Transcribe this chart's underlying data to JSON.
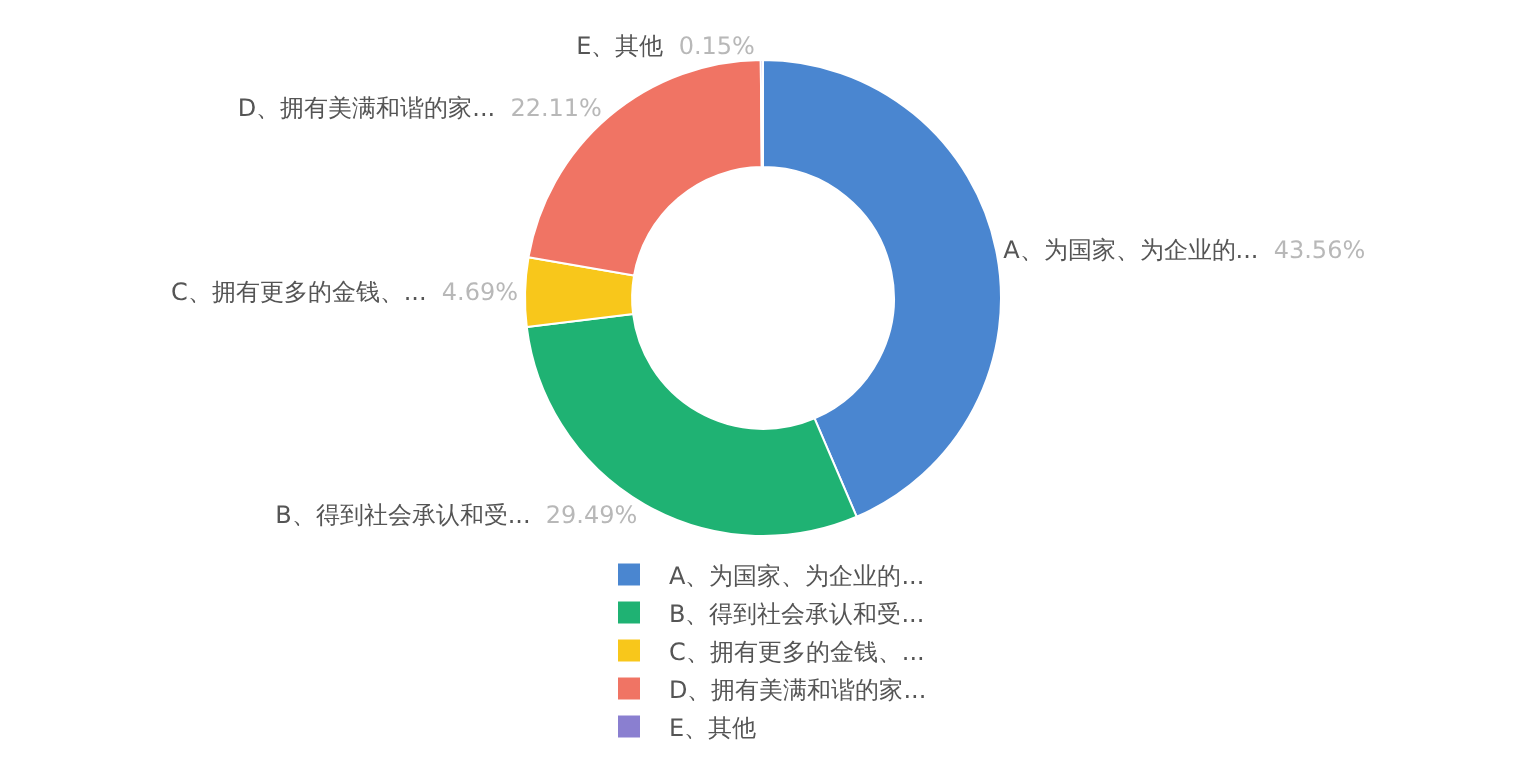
{
  "chart_data": {
    "type": "donut",
    "categories": [
      "A、为国家、为企业的...",
      "B、得到社会承认和受...",
      "C、拥有更多的金钱、...",
      "D、拥有美满和谐的家...",
      "E、其他"
    ],
    "values": [
      43.56,
      29.49,
      4.69,
      22.11,
      0.15
    ],
    "value_labels": [
      "43.56%",
      "29.49%",
      "4.69%",
      "22.11%",
      "0.15%"
    ],
    "colors": [
      "#4a86d0",
      "#1fb273",
      "#f8c71b",
      "#f07464",
      "#8a7fd0"
    ],
    "legend": "bottom"
  }
}
